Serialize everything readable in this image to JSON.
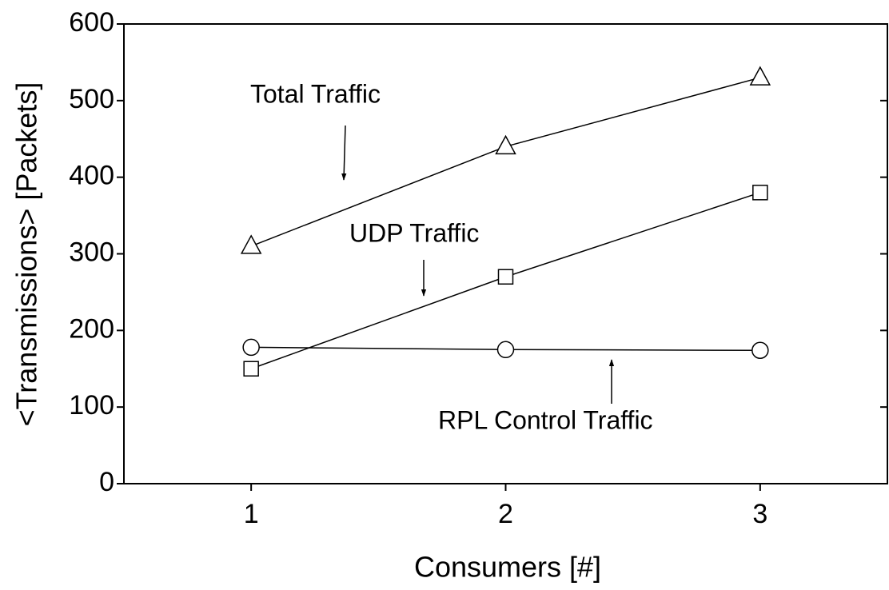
{
  "chart_data": {
    "type": "line",
    "x_label": "Consumers [#]",
    "y_label": "<Transmissions> [Packets]",
    "x": [
      1,
      2,
      3
    ],
    "series": [
      {
        "name": "Total Traffic",
        "color": "#000000",
        "marker": "triangle",
        "values": [
          310,
          440,
          530
        ]
      },
      {
        "name": "UDP Traffic",
        "color": "#000000",
        "marker": "square",
        "values": [
          150,
          270,
          380
        ]
      },
      {
        "name": "RPL Control Traffic",
        "color": "#000000",
        "marker": "circle",
        "values": [
          178,
          175,
          174
        ]
      }
    ],
    "annotations": [
      "Total Traffic",
      "UDP Traffic",
      "RPL Control Traffic"
    ],
    "xlim": [
      0.5,
      3.5
    ],
    "xticks": [
      1,
      2,
      3
    ],
    "ylim": [
      0,
      600
    ],
    "yticks": [
      0,
      100,
      200,
      300,
      400,
      500,
      600
    ],
    "grid": false
  }
}
